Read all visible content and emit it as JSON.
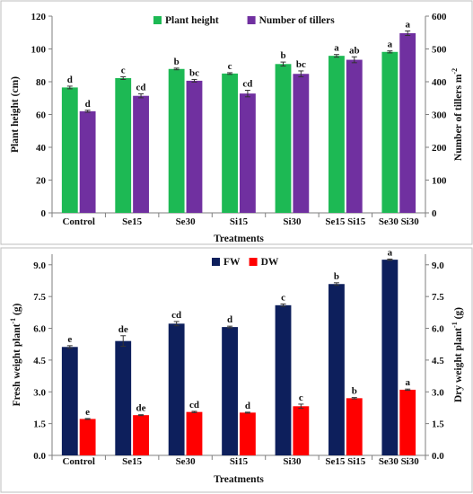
{
  "chart_data": [
    {
      "type": "bar",
      "categories": [
        "Control",
        "Se15",
        "Se30",
        "Si15",
        "Si30",
        "Se15 Si15",
        "Se30 Si30"
      ],
      "xlabel": "Treatments",
      "ylabel": "Plant height (cm)",
      "ylabel2_main": "Number of tillers m",
      "ylabel2_sup": "-2",
      "ylim": [
        0,
        120
      ],
      "yticks": [
        "0",
        "20",
        "40",
        "60",
        "80",
        "100",
        "120"
      ],
      "y2lim": [
        0,
        600
      ],
      "y2ticks": [
        "0",
        "100",
        "200",
        "300",
        "400",
        "500",
        "600"
      ],
      "legend_position": "top",
      "series": [
        {
          "name": "Plant height",
          "axis": "left",
          "color": "#1db954",
          "values": [
            76.5,
            82.2,
            87.8,
            85.0,
            90.8,
            95.8,
            98.2
          ],
          "errors": [
            0.8,
            0.8,
            0.5,
            0.5,
            1.2,
            0.8,
            0.6
          ],
          "letters": [
            "d",
            "c",
            "b",
            "c",
            "b",
            "a",
            "a"
          ]
        },
        {
          "name": "Number of tillers",
          "axis": "right",
          "color": "#7030a0",
          "values": [
            310,
            357,
            403,
            364,
            424,
            467,
            548
          ],
          "errors": [
            3,
            6,
            4,
            10,
            9,
            9,
            7
          ],
          "letters": [
            "d",
            "cd",
            "bc",
            "cd",
            "bc",
            "ab",
            "a"
          ]
        }
      ]
    },
    {
      "type": "bar",
      "categories": [
        "Control",
        "Se15",
        "Se30",
        "Si15",
        "Si30",
        "Se15 Si15",
        "Se30 Si30"
      ],
      "xlabel": "Treatments",
      "ylabel_main": "Fresh weight plant",
      "ylabel_sup": "-1",
      "ylabel_tail": " (g)",
      "ylabel2_main": "Dry weight plant",
      "ylabel2_sup": "-1",
      "ylabel2_tail": " (g)",
      "ylim": [
        0,
        9.5
      ],
      "yticks": [
        "0.0",
        "1.5",
        "3.0",
        "4.5",
        "6.0",
        "7.5",
        "9.0"
      ],
      "y2lim": [
        0,
        9.5
      ],
      "y2ticks": [
        "0.0",
        "1.5",
        "3.0",
        "4.5",
        "6.0",
        "7.5",
        "9.0"
      ],
      "legend_position": "top",
      "series": [
        {
          "name": "FW",
          "axis": "left",
          "color": "#0d1f5c",
          "values": [
            5.12,
            5.4,
            6.22,
            6.06,
            7.09,
            8.09,
            9.24
          ],
          "errors": [
            0.06,
            0.25,
            0.1,
            0.04,
            0.06,
            0.06,
            0.03
          ],
          "letters": [
            "e",
            "de",
            "cd",
            "d",
            "c",
            "b",
            "a"
          ]
        },
        {
          "name": "DW",
          "axis": "right",
          "color": "#ff0000",
          "values": [
            1.72,
            1.9,
            2.05,
            2.02,
            2.32,
            2.7,
            3.1
          ],
          "errors": [
            0.02,
            0.02,
            0.03,
            0.02,
            0.1,
            0.03,
            0.03
          ],
          "letters": [
            "e",
            "de",
            "cd",
            "d",
            "c",
            "b",
            "a"
          ]
        }
      ]
    }
  ]
}
